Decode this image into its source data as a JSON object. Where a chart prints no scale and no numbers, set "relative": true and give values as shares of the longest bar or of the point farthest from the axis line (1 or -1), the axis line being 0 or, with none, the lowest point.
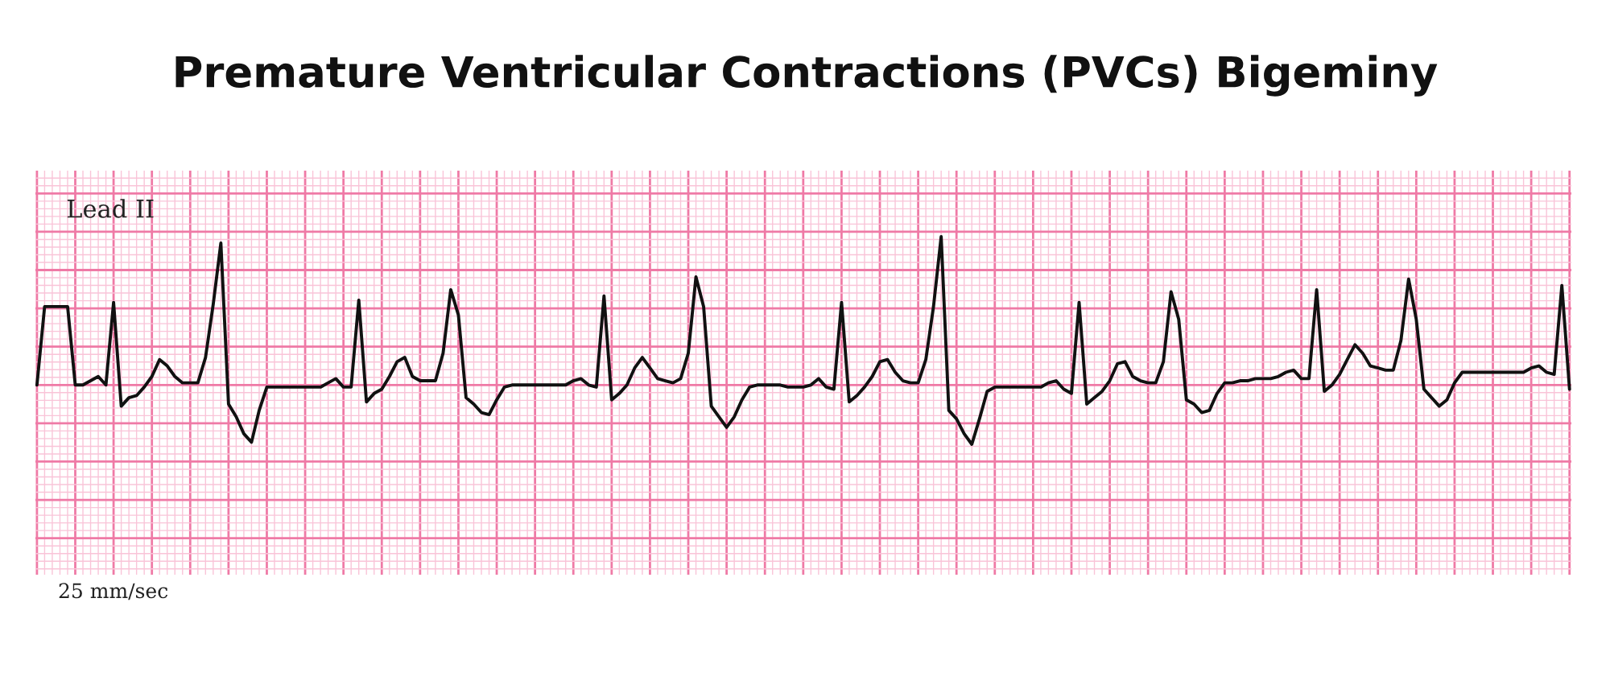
{
  "chart_data": {
    "type": "line",
    "title": "Premature Ventricular Contractions (PVCs) Bigeminy",
    "relative": true,
    "grid": true,
    "marker": "none",
    "line_style": "solid",
    "annotations": [
      "Lead II",
      "25 mm/sec"
    ],
    "categories": [
      null,
      null,
      null,
      null,
      null,
      null,
      null,
      null,
      null,
      null,
      null,
      null,
      null,
      null,
      null,
      null,
      null,
      null,
      null,
      null,
      null,
      null,
      null,
      null,
      null,
      null,
      null,
      null,
      null,
      null,
      null,
      null,
      null,
      null,
      null,
      null,
      null,
      null,
      null,
      null,
      null,
      null,
      null,
      null,
      null,
      null,
      null,
      null,
      null,
      null,
      null,
      null,
      null,
      null,
      null,
      null,
      null,
      null,
      null,
      null,
      null,
      null,
      null,
      null,
      null,
      null,
      null,
      null,
      null,
      null,
      null,
      null,
      null,
      null,
      null,
      null,
      null,
      null,
      null,
      null,
      null,
      null,
      null,
      null,
      null,
      null,
      null,
      null,
      null,
      null,
      null,
      null,
      null,
      null,
      null,
      null,
      null,
      null,
      null,
      null,
      null,
      null,
      null,
      null,
      null,
      null,
      null,
      null,
      null,
      null,
      null,
      null,
      null,
      null,
      null,
      null,
      null,
      null,
      null,
      null,
      null,
      null,
      null,
      null,
      null,
      null,
      null,
      null,
      null,
      null,
      null,
      null,
      null,
      null,
      null,
      null,
      null,
      null,
      null,
      null,
      null,
      null,
      null,
      null,
      null,
      null,
      null,
      null,
      null,
      null,
      null,
      null,
      null,
      null,
      null,
      null,
      null,
      null,
      null,
      null,
      null,
      null,
      null,
      null,
      null,
      null,
      null,
      null,
      null,
      null,
      null,
      null,
      null,
      null,
      null,
      null,
      null,
      null,
      null,
      null,
      null,
      null,
      null,
      null,
      null,
      null,
      null,
      null,
      null,
      null,
      null,
      null,
      null,
      null,
      null,
      null,
      null,
      null,
      null,
      null,
      null
    ],
    "series": [
      {
        "color": "#111111",
        "values": [
          0.3,
          0.67,
          0.67,
          0.67,
          0.67,
          0.3,
          0.3,
          0.32,
          0.34,
          0.3,
          0.69,
          0.2,
          0.24,
          0.25,
          0.29,
          0.34,
          0.42,
          0.39,
          0.34,
          0.31,
          0.31,
          0.31,
          0.43,
          0.68,
          0.97,
          0.21,
          0.15,
          0.07,
          0.03,
          0.18,
          0.29,
          0.29,
          0.29,
          0.29,
          0.29,
          0.29,
          0.29,
          0.29,
          0.31,
          0.33,
          0.29,
          0.29,
          0.7,
          0.22,
          0.26,
          0.28,
          0.34,
          0.41,
          0.43,
          0.34,
          0.32,
          0.32,
          0.32,
          0.45,
          0.75,
          0.63,
          0.24,
          0.21,
          0.17,
          0.16,
          0.23,
          0.29,
          0.3,
          0.3,
          0.3,
          0.3,
          0.3,
          0.3,
          0.3,
          0.3,
          0.32,
          0.33,
          0.3,
          0.29,
          0.72,
          0.23,
          0.26,
          0.3,
          0.38,
          0.43,
          0.38,
          0.33,
          0.32,
          0.31,
          0.33,
          0.45,
          0.81,
          0.67,
          0.2,
          0.15,
          0.1,
          0.15,
          0.23,
          0.29,
          0.3,
          0.3,
          0.3,
          0.3,
          0.29,
          0.29,
          0.29,
          0.3,
          0.33,
          0.29,
          0.28,
          0.69,
          0.22,
          0.25,
          0.29,
          0.34,
          0.41,
          0.42,
          0.36,
          0.32,
          0.31,
          0.31,
          0.42,
          0.67,
          1.0,
          0.18,
          0.14,
          0.07,
          0.02,
          0.14,
          0.27,
          0.29,
          0.29,
          0.29,
          0.29,
          0.29,
          0.29,
          0.29,
          0.31,
          0.32,
          0.28,
          0.26,
          0.69,
          0.21,
          0.24,
          0.27,
          0.32,
          0.4,
          0.41,
          0.34,
          0.32,
          0.31,
          0.31,
          0.41,
          0.74,
          0.61,
          0.23,
          0.21,
          0.17,
          0.18,
          0.26,
          0.31,
          0.31,
          0.32,
          0.32,
          0.33,
          0.33,
          0.33,
          0.34,
          0.36,
          0.37,
          0.33,
          0.33,
          0.75,
          0.27,
          0.3,
          0.35,
          0.42,
          0.49,
          0.45,
          0.39,
          0.38,
          0.37,
          0.37,
          0.51,
          0.8,
          0.61,
          0.28,
          0.24,
          0.2,
          0.23,
          0.31,
          0.36,
          0.36,
          0.36,
          0.36,
          0.36,
          0.36,
          0.36,
          0.36,
          0.36,
          0.38,
          0.39,
          0.36,
          0.35,
          0.77,
          0.28
        ]
      }
    ]
  }
}
